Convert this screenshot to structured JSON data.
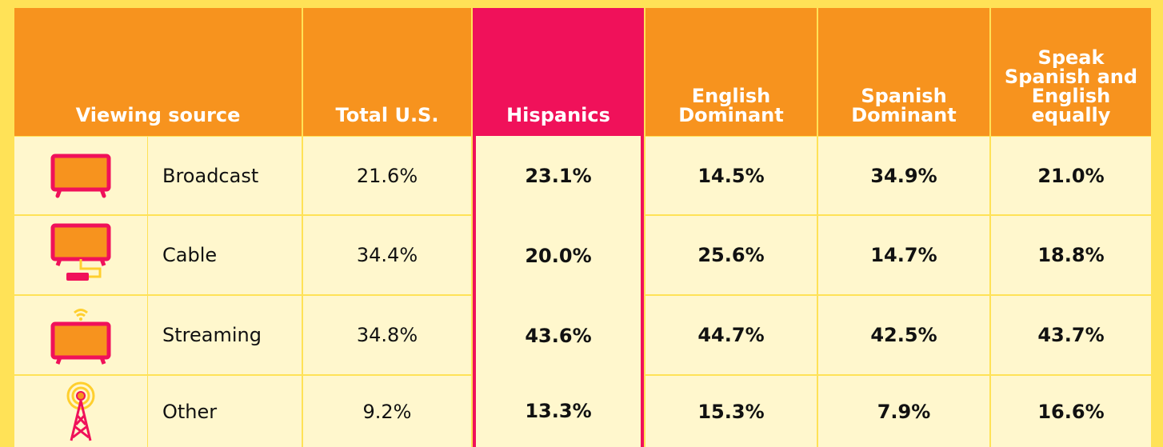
{
  "table": {
    "header": [
      "Viewing source",
      "Total U.S.",
      "Hispanics",
      "English Dominant",
      "Spanish Dominant",
      "Speak Spanish and English equally"
    ],
    "rows": [
      {
        "source": "Broadcast",
        "values": [
          "21.6%",
          "23.1%",
          "14.5%",
          "34.9%",
          "21.0%"
        ]
      },
      {
        "source": "Cable",
        "values": [
          "34.4%",
          "20.0%",
          "25.6%",
          "14.7%",
          "18.8%"
        ]
      },
      {
        "source": "Streaming",
        "values": [
          "34.8%",
          "43.6%",
          "44.7%",
          "42.5%",
          "43.7%"
        ]
      },
      {
        "source": "Other",
        "values": [
          "9.2%",
          "13.3%",
          "15.3%",
          "7.9%",
          "16.6%"
        ]
      }
    ]
  }
}
